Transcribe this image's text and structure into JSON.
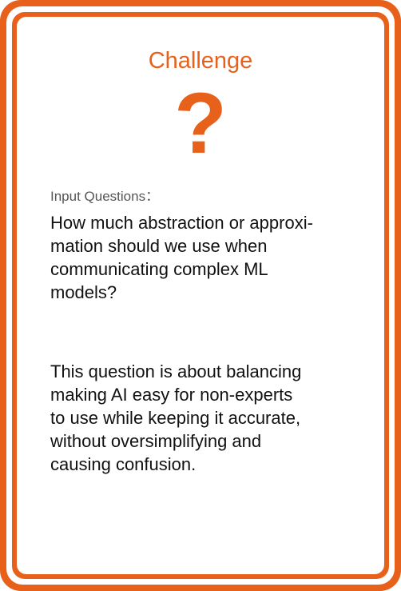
{
  "card": {
    "title": "Challenge",
    "icon": "question-mark-icon",
    "icon_glyph": "?",
    "accent_color": "#E8611B",
    "label": "Input Questions：",
    "question_lines": [
      "How much abstraction or approxi-",
      "mation should we use when",
      "communicating complex ML",
      "models?"
    ],
    "explanation_lines": [
      "This question is about balancing",
      "making AI easy for non-experts",
      "to use while keeping it accurate,",
      "without oversimplifying and",
      "causing confusion."
    ]
  }
}
